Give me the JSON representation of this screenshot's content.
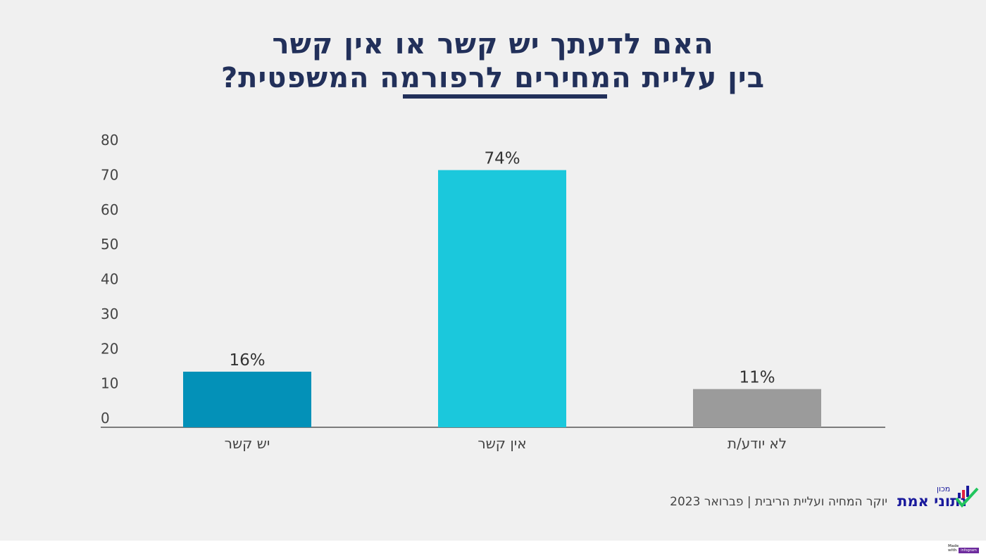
{
  "chart_data": {
    "type": "bar",
    "title_line1": "האם לדעתך יש קשר או אין קשר",
    "title_line2": "בין עליית המחירים לרפורמה המשפטית?",
    "categories": [
      "יש קשר",
      "אין קשר",
      "לא יודע/ת"
    ],
    "values": [
      16,
      74,
      11
    ],
    "data_labels": [
      "16%",
      "74%",
      "11%"
    ],
    "colors": [
      "#0391b8",
      "#1bc8dc",
      "#9b9b9b"
    ],
    "ylim": [
      0,
      80
    ],
    "yticks": [
      0,
      10,
      20,
      30,
      40,
      50,
      60,
      70,
      80
    ],
    "grid": false,
    "title_color": "#22305a"
  },
  "footer": {
    "source": "יוקר המחיה ועליית הריבית  |  פברואר 2023",
    "logo_name": "נתוני אמת",
    "logo_sub": "מכון"
  },
  "badge": {
    "made_with": "Made with",
    "brand": "infogram"
  }
}
